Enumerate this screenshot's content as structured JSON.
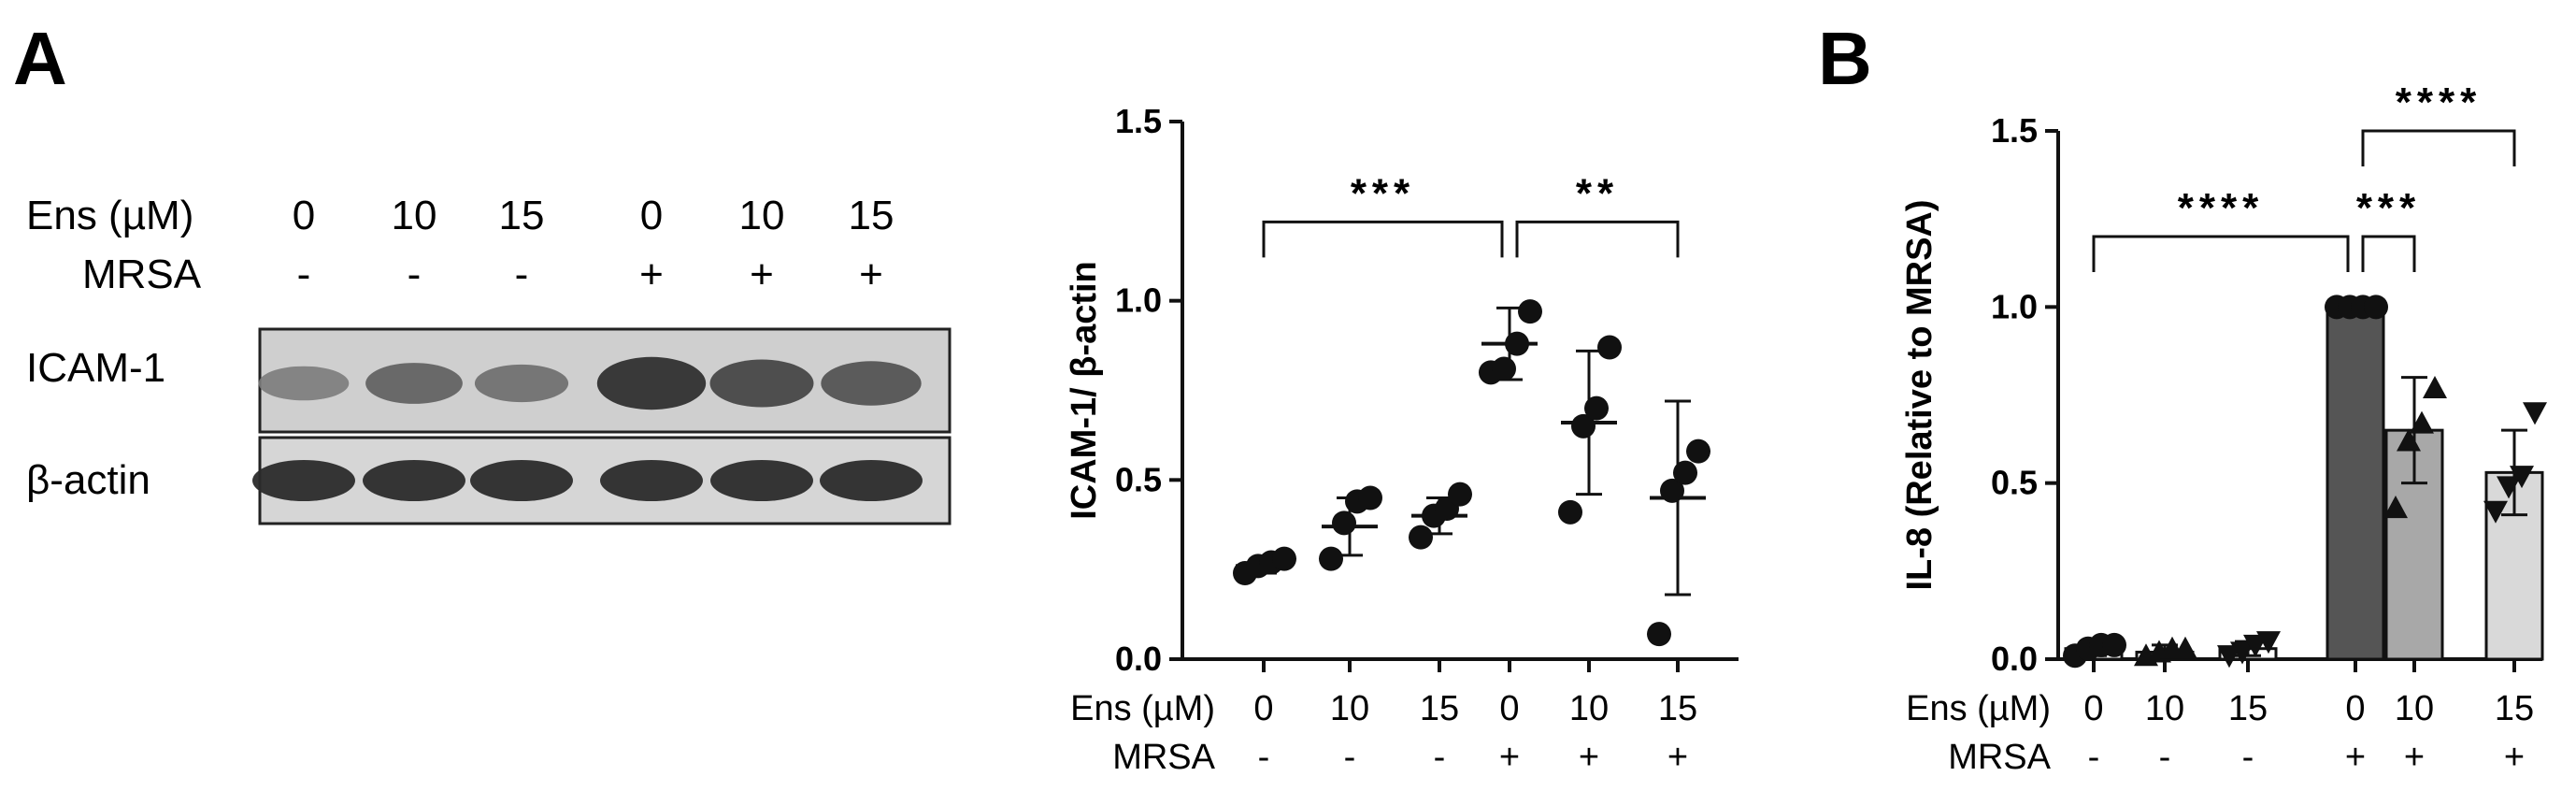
{
  "panels": {
    "a_letter": "A",
    "b_letter": "B"
  },
  "western_blot": {
    "ens_label": "Ens (µM)",
    "mrsa_label": "MRSA",
    "ens_values": [
      "0",
      "10",
      "15",
      "0",
      "10",
      "15"
    ],
    "mrsa_values": [
      "-",
      "-",
      "-",
      "+",
      "+",
      "+"
    ],
    "rows": [
      "ICAM-1",
      "β-actin"
    ],
    "icam_band_intensity": [
      0.35,
      0.55,
      0.45,
      0.9,
      0.75,
      0.65
    ],
    "actin_band_intensity": [
      0.85,
      0.85,
      0.85,
      0.85,
      0.85,
      0.85
    ]
  },
  "chart_data": [
    {
      "type": "scatter",
      "ylabel": "ICAM-1/ β-actin",
      "ylim": [
        0,
        1.5
      ],
      "yticks": [
        "0.0",
        "0.5",
        "1.0",
        "1.5"
      ],
      "row_labels": [
        "Ens (µM)",
        "MRSA"
      ],
      "categories": [
        "0",
        "10",
        "15",
        "0",
        "10",
        "15"
      ],
      "mrsa": [
        "-",
        "-",
        "-",
        "+",
        "+",
        "+"
      ],
      "marker": "circle",
      "points": [
        [
          0.24,
          0.26,
          0.27,
          0.28
        ],
        [
          0.28,
          0.38,
          0.44,
          0.45
        ],
        [
          0.34,
          0.4,
          0.42,
          0.46
        ],
        [
          0.8,
          0.81,
          0.88,
          0.97
        ],
        [
          0.41,
          0.65,
          0.7,
          0.87
        ],
        [
          0.07,
          0.47,
          0.52,
          0.58
        ]
      ],
      "mean": [
        0.26,
        0.37,
        0.4,
        0.88,
        0.66,
        0.45
      ],
      "sd": [
        0.02,
        0.08,
        0.05,
        0.1,
        0.2,
        0.27
      ],
      "significance": [
        {
          "from": 0,
          "to": 3,
          "label": "***",
          "y": 1.22
        },
        {
          "from": 3,
          "to": 5,
          "label": "**",
          "y": 1.22
        }
      ]
    },
    {
      "type": "bar",
      "ylabel": "IL-8 (Relative to MRSA)",
      "ylim": [
        0,
        1.5
      ],
      "yticks": [
        "0.0",
        "0.5",
        "1.0",
        "1.5"
      ],
      "row_labels": [
        "Ens (µM)",
        "MRSA"
      ],
      "categories": [
        "0",
        "10",
        "15",
        "0",
        "10",
        "15"
      ],
      "mrsa": [
        "-",
        "-",
        "-",
        "+",
        "+",
        "+"
      ],
      "markers": [
        "circle",
        "triangle-up",
        "triangle-down",
        "circle",
        "triangle-up",
        "triangle-down"
      ],
      "bar_colors": [
        "#ffffff",
        "#ffffff",
        "#ffffff",
        "#555555",
        "#a8a8a8",
        "#d9d9d9"
      ],
      "values": [
        0.03,
        0.02,
        0.03,
        1.0,
        0.65,
        0.53
      ],
      "sd": [
        0.02,
        0.02,
        0.02,
        0.0,
        0.15,
        0.12
      ],
      "points": [
        [
          0.01,
          0.03,
          0.04,
          0.04
        ],
        [
          0.01,
          0.02,
          0.03,
          0.03
        ],
        [
          0.01,
          0.02,
          0.04,
          0.05
        ],
        [
          1.0,
          1.0,
          1.0,
          1.0
        ],
        [
          0.43,
          0.62,
          0.67,
          0.77
        ],
        [
          0.42,
          0.49,
          0.52,
          0.7
        ]
      ],
      "significance": [
        {
          "from": 0,
          "to": 3,
          "label": "****",
          "y": 1.2
        },
        {
          "from": 3,
          "to": 4,
          "label": "***",
          "y": 1.2
        },
        {
          "from": 3,
          "to": 5,
          "label": "****",
          "y": 1.5
        }
      ]
    }
  ]
}
